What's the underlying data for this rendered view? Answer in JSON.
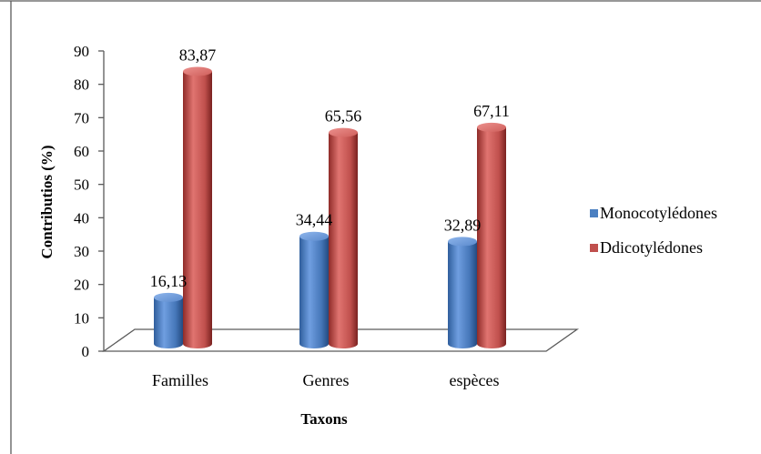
{
  "chart_data": {
    "type": "bar",
    "categories": [
      "Familles",
      "Genres",
      "espèces"
    ],
    "series": [
      {
        "name": "Monocotylédones",
        "values": [
          16.13,
          34.44,
          32.89
        ],
        "labels": [
          "16,13",
          "34,44",
          "32,89"
        ],
        "color": "#4a7fc1"
      },
      {
        "name": "Ddicotylédones",
        "values": [
          83.87,
          65.56,
          67.11
        ],
        "labels": [
          "83,87",
          "65,56",
          "67,11"
        ],
        "color": "#c0504d"
      }
    ],
    "xlabel": "Taxons",
    "ylabel": "Contributios (%)",
    "ylim": [
      0,
      90
    ],
    "yticks": [
      "0",
      "10",
      "20",
      "30",
      "40",
      "50",
      "60",
      "70",
      "80",
      "90"
    ],
    "legend_position": "right",
    "style": "3d-cylinder",
    "grid": false
  }
}
